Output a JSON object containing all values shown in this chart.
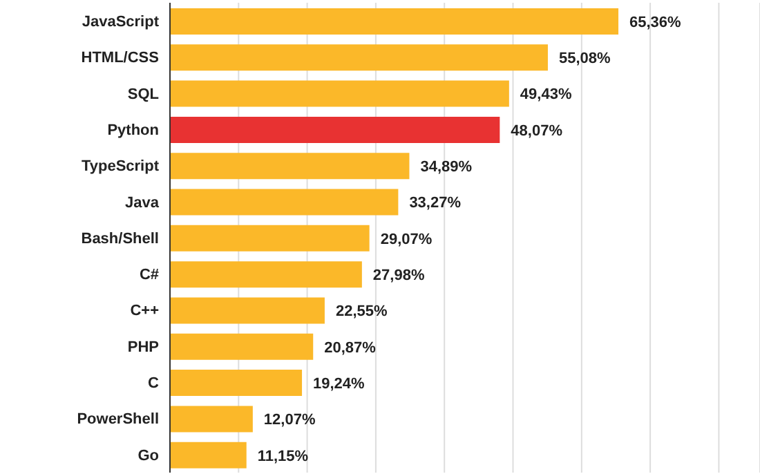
{
  "chart_data": {
    "type": "bar",
    "orientation": "horizontal",
    "categories": [
      "JavaScript",
      "HTML/CSS",
      "SQL",
      "Python",
      "TypeScript",
      "Java",
      "Bash/Shell",
      "C#",
      "C++",
      "PHP",
      "C",
      "PowerShell",
      "Go"
    ],
    "values": [
      65.36,
      55.08,
      49.43,
      48.07,
      34.89,
      33.27,
      29.07,
      27.98,
      22.55,
      20.87,
      19.24,
      12.07,
      11.15
    ],
    "colors": [
      "#fbb829",
      "#fbb829",
      "#fbb829",
      "#e83232",
      "#fbb829",
      "#fbb829",
      "#fbb829",
      "#fbb829",
      "#fbb829",
      "#fbb829",
      "#fbb829",
      "#fbb829",
      "#fbb829"
    ],
    "value_labels": [
      "65,36%",
      "55,08%",
      "49,43%",
      "48,07%",
      "34,89%",
      "33,27%",
      "29,07%",
      "27,98%",
      "22,55%",
      "20,87%",
      "19,24%",
      "12,07%",
      "11,15%"
    ],
    "xlim": [
      0,
      86
    ],
    "xticks": [
      {
        "value": 0,
        "label": null
      },
      {
        "value": 10,
        "label": null
      },
      {
        "value": 20,
        "label": null
      },
      {
        "value": 30,
        "label": null
      },
      {
        "value": 40,
        "label": null
      },
      {
        "value": 50,
        "label": null
      },
      {
        "value": 60,
        "label": null
      },
      {
        "value": 70,
        "label": null
      },
      {
        "value": 80,
        "label": null
      }
    ],
    "grid": "x",
    "tick_labels": "y"
  }
}
